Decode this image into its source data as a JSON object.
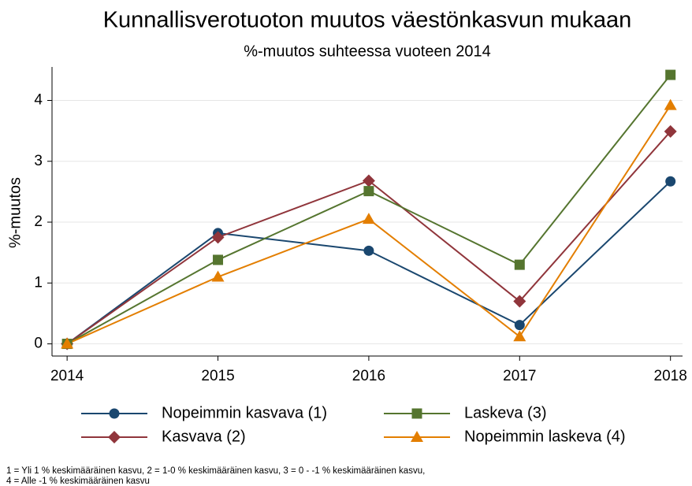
{
  "chart_data": {
    "type": "line",
    "title": "Kunnallisverotuoton muutos väestönkasvun mukaan",
    "subtitle": "%-muutos suhteessa vuoteen 2014",
    "y_label": "%-muutos",
    "x": [
      2014,
      2015,
      2016,
      2017,
      2018
    ],
    "xlim": [
      2013.9,
      2018.08
    ],
    "xticks": [
      2014,
      2015,
      2016,
      2017,
      2018
    ],
    "ylim": [
      -0.2,
      4.55
    ],
    "yticks": [
      0,
      1,
      2,
      3,
      4
    ],
    "grid": true,
    "legend": "bottom",
    "series": [
      {
        "name": "Nopeimmin kasvava (1)",
        "color": "#1a476f",
        "marker": "circle",
        "values": [
          0,
          1.82,
          1.53,
          0.31,
          2.67
        ]
      },
      {
        "name": "Kasvava (2)",
        "color": "#90353b",
        "marker": "diamond",
        "values": [
          0,
          1.75,
          2.68,
          0.7,
          3.49
        ]
      },
      {
        "name": "Laskeva (3)",
        "color": "#55752f",
        "marker": "square",
        "values": [
          0,
          1.38,
          2.51,
          1.3,
          4.42
        ]
      },
      {
        "name": "Nopeimmin laskeva (4)",
        "color": "#e37e00",
        "marker": "triangle",
        "values": [
          0,
          1.1,
          2.05,
          0.12,
          3.92
        ]
      }
    ],
    "note": [
      "1 = Yli 1 % keskimääräinen kasvu, 2 = 1-0 % keskimääräinen kasvu, 3 = 0 - -1 % keskimääräinen kasvu,",
      "4 = Alle -1 % keskimääräinen kasvu"
    ]
  }
}
